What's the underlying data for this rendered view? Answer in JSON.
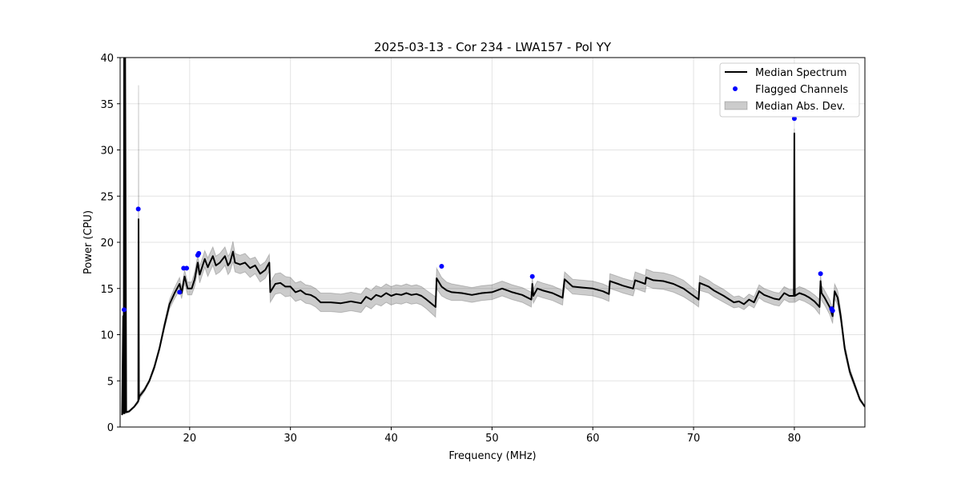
{
  "chart_data": {
    "type": "line",
    "title": "2025-03-13 - Cor 234 - LWA157 - Pol YY",
    "xlabel": "Frequency (MHz)",
    "ylabel": "Power (CPU)",
    "xlim": [
      13.1,
      87
    ],
    "ylim": [
      0,
      40
    ],
    "xticks": [
      20,
      30,
      40,
      50,
      60,
      70,
      80
    ],
    "yticks": [
      0,
      5,
      10,
      15,
      20,
      25,
      30,
      35,
      40
    ],
    "grid": true,
    "legend_position": "top-right",
    "legend": [
      "Median Spectrum",
      "Flagged Channels",
      "Median Abs. Dev."
    ],
    "series": [
      {
        "name": "Median Spectrum",
        "color": "#000000",
        "x": [
          13.3,
          13.4,
          13.45,
          13.5,
          13.55,
          13.6,
          13.7,
          14.0,
          14.5,
          14.9,
          14.93,
          14.97,
          15.0,
          15.5,
          16.0,
          16.5,
          17.0,
          17.5,
          18.0,
          18.5,
          19.0,
          19.2,
          19.5,
          19.8,
          20.2,
          20.5,
          20.8,
          21.0,
          21.5,
          21.8,
          22.0,
          22.3,
          22.6,
          23.0,
          23.5,
          23.8,
          24.0,
          24.3,
          24.5,
          25.0,
          25.5,
          26.0,
          26.5,
          27.0,
          27.5,
          27.9,
          28.0,
          28.5,
          29.0,
          29.5,
          30.0,
          30.5,
          31.0,
          31.5,
          32.0,
          32.5,
          33.0,
          34.0,
          35.0,
          36.0,
          37.0,
          37.5,
          38.0,
          38.5,
          39.0,
          39.5,
          40.0,
          40.5,
          41.0,
          41.5,
          42.0,
          42.5,
          43.0,
          43.5,
          44.4,
          44.5,
          45.0,
          45.5,
          46.0,
          47.0,
          48.0,
          49.0,
          50.0,
          51.0,
          52.0,
          53.0,
          53.9,
          54.0,
          54.1,
          54.5,
          55.0,
          56.0,
          57.0,
          57.2,
          58.0,
          59.0,
          60.0,
          61.0,
          61.6,
          61.7,
          62.5,
          63.0,
          64.0,
          64.2,
          65.2,
          65.3,
          66.0,
          67.0,
          68.0,
          69.0,
          70.0,
          70.5,
          70.6,
          71.5,
          72.0,
          73.0,
          74.0,
          74.5,
          75.0,
          75.5,
          76.0,
          76.5,
          77.0,
          78.0,
          78.5,
          79.0,
          79.5,
          79.95,
          80.0,
          80.05,
          80.5,
          81.0,
          81.5,
          82.0,
          82.5,
          82.6,
          82.7,
          83.0,
          83.5,
          83.8,
          84.0,
          84.3,
          84.6,
          85.0,
          85.5,
          86.0,
          86.5,
          87.0
        ],
        "y": [
          1.3,
          12.0,
          1.5,
          40.0,
          1.5,
          40.0,
          1.6,
          1.7,
          2.2,
          2.8,
          22.5,
          3.0,
          3.3,
          4.0,
          5.0,
          6.5,
          8.5,
          11.0,
          13.3,
          14.5,
          15.5,
          14.5,
          16.3,
          15.0,
          15.0,
          16.0,
          17.8,
          16.5,
          18.2,
          17.3,
          17.8,
          18.5,
          17.5,
          17.8,
          18.5,
          17.5,
          17.8,
          19.0,
          17.8,
          17.6,
          17.8,
          17.2,
          17.5,
          16.6,
          17.0,
          17.8,
          14.6,
          15.5,
          15.6,
          15.2,
          15.2,
          14.6,
          14.8,
          14.4,
          14.3,
          14.0,
          13.5,
          13.5,
          13.4,
          13.6,
          13.4,
          14.1,
          13.8,
          14.3,
          14.1,
          14.5,
          14.2,
          14.4,
          14.3,
          14.5,
          14.3,
          14.4,
          14.2,
          13.8,
          13.0,
          16.1,
          15.2,
          14.8,
          14.6,
          14.5,
          14.3,
          14.5,
          14.6,
          15.0,
          14.6,
          14.3,
          13.8,
          15.5,
          14.2,
          15.0,
          14.8,
          14.5,
          14.0,
          16.0,
          15.2,
          15.1,
          15.0,
          14.7,
          14.4,
          15.8,
          15.5,
          15.3,
          15.0,
          15.9,
          15.5,
          16.2,
          15.9,
          15.8,
          15.5,
          15.0,
          14.2,
          13.8,
          15.6,
          15.2,
          14.8,
          14.2,
          13.5,
          13.6,
          13.3,
          13.8,
          13.5,
          14.7,
          14.3,
          13.9,
          13.8,
          14.5,
          14.2,
          14.2,
          31.8,
          14.2,
          14.5,
          14.3,
          14.0,
          13.6,
          13.0,
          15.8,
          14.5,
          14.0,
          13.0,
          12.0,
          14.7,
          14.0,
          12.0,
          8.5,
          6.0,
          4.5,
          3.0,
          2.2
        ],
        "mad": [
          0.1,
          0.8,
          0.1,
          0.5,
          0.1,
          0.5,
          0.1,
          0.1,
          0.1,
          0.2,
          14.5,
          0.2,
          0.3,
          0.2,
          0.2,
          0.3,
          0.3,
          0.4,
          0.5,
          0.6,
          0.7,
          0.6,
          0.7,
          0.7,
          0.7,
          0.8,
          0.8,
          0.9,
          0.9,
          1.0,
          1.0,
          1.0,
          1.0,
          1.0,
          1.0,
          1.0,
          1.0,
          1.1,
          1.0,
          1.0,
          1.0,
          1.0,
          0.9,
          0.9,
          0.9,
          0.9,
          1.1,
          1.1,
          1.1,
          1.1,
          1.0,
          1.0,
          1.0,
          1.0,
          1.0,
          1.0,
          1.0,
          1.0,
          1.0,
          1.0,
          1.0,
          1.0,
          1.0,
          1.0,
          1.0,
          1.0,
          1.0,
          1.0,
          1.0,
          1.0,
          1.0,
          1.0,
          1.0,
          1.0,
          1.1,
          1.1,
          1.0,
          0.9,
          0.9,
          0.8,
          0.8,
          0.8,
          0.8,
          0.8,
          0.8,
          0.8,
          0.8,
          0.8,
          0.8,
          0.8,
          0.8,
          0.8,
          0.8,
          0.8,
          0.8,
          0.8,
          0.8,
          0.8,
          0.8,
          0.8,
          0.8,
          0.8,
          0.8,
          0.9,
          0.9,
          0.9,
          0.9,
          0.9,
          0.9,
          0.9,
          0.8,
          0.8,
          0.8,
          0.7,
          0.7,
          0.7,
          0.6,
          0.6,
          0.6,
          0.6,
          0.6,
          0.7,
          0.7,
          0.7,
          0.7,
          0.7,
          0.7,
          0.7,
          0.5,
          0.7,
          0.7,
          0.7,
          0.7,
          0.7,
          0.8,
          0.8,
          0.8,
          0.8,
          0.8,
          0.8,
          0.8,
          0.8,
          0.7,
          0.5,
          0.4,
          0.3,
          0.2,
          0.1
        ]
      },
      {
        "name": "Flagged Channels",
        "type": "scatter",
        "color": "#0000ff",
        "x": [
          13.5,
          14.9,
          19.0,
          19.4,
          19.7,
          20.8,
          20.9,
          45.0,
          54.0,
          80.0,
          82.6,
          83.7,
          83.8
        ],
        "y": [
          12.7,
          23.6,
          14.6,
          17.2,
          17.2,
          18.6,
          18.8,
          17.4,
          16.3,
          33.4,
          16.6,
          12.8,
          12.6
        ]
      }
    ],
    "band_color": "#000000"
  }
}
